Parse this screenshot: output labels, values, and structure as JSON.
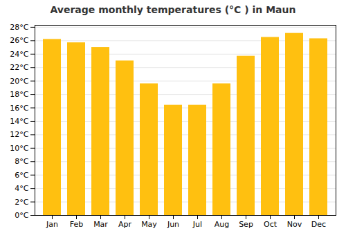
{
  "chart_data": {
    "type": "bar",
    "title": "Average monthly temperatures (°C ) in Maun",
    "categories": [
      "Jan",
      "Feb",
      "Mar",
      "Apr",
      "May",
      "Jun",
      "Jul",
      "Aug",
      "Sep",
      "Oct",
      "Nov",
      "Dec"
    ],
    "values": [
      26.2,
      25.7,
      25.0,
      23.0,
      19.6,
      16.4,
      16.4,
      19.6,
      23.7,
      26.5,
      27.1,
      26.3
    ],
    "color": "#FFC010",
    "ylim": [
      0,
      28.3
    ],
    "yticks": [
      {
        "value": 0,
        "label": "0°C"
      },
      {
        "value": 2,
        "label": "2°C"
      },
      {
        "value": 4,
        "label": "4°C"
      },
      {
        "value": 6,
        "label": "6°C"
      },
      {
        "value": 8,
        "label": "8°C"
      },
      {
        "value": 10,
        "label": "10°C"
      },
      {
        "value": 12,
        "label": "12°C"
      },
      {
        "value": 14,
        "label": "14°C"
      },
      {
        "value": 16,
        "label": "16°C"
      },
      {
        "value": 18,
        "label": "18°C"
      },
      {
        "value": 20,
        "label": "20°C"
      },
      {
        "value": 22,
        "label": "22°C"
      },
      {
        "value": 24,
        "label": "24°C"
      },
      {
        "value": 26,
        "label": "26°C"
      },
      {
        "value": 28,
        "label": "28°C"
      }
    ],
    "grid": true
  }
}
